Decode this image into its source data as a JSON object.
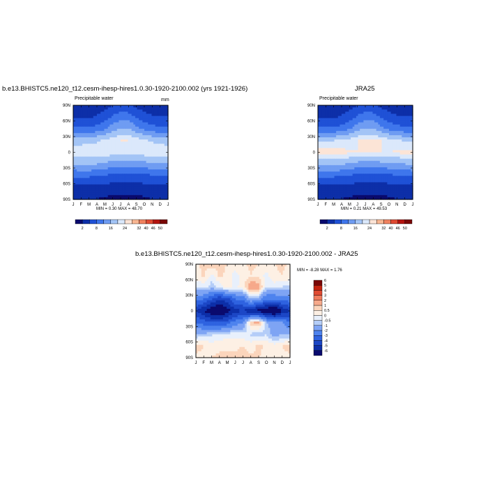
{
  "panels": [
    {
      "title": "b.e13.BHISTC5.ne120_t12.cesm-ihesp-hires1.0.30-1920-2100.002 (yrs 1921-1926)",
      "subtitle_left": "Precipitable water",
      "subtitle_right": "mm",
      "min_label": "MIN =",
      "min_value": "0.30",
      "max_label": "MAX =",
      "max_value": "48.70"
    },
    {
      "title": "JRA25",
      "subtitle_left": "Precipitable water",
      "subtitle_right": "",
      "min_label": "MIN =",
      "min_value": "0.21",
      "max_label": "MAX =",
      "max_value": "49.53"
    },
    {
      "title": "b.e13.BHISTC5.ne120_t12.cesm-ihesp-hires1.0.30-1920-2100.002 - JRA25",
      "subtitle_left": "",
      "subtitle_right": "",
      "min_label": "MIN =",
      "min_value": "-8.28",
      "max_label": "MAX =",
      "max_value": "1.76"
    }
  ],
  "chart_data": [
    {
      "type": "heatmap",
      "title": "b.e13.BHISTC5.ne120_t12.cesm-ihesp-hires1.0.30-1920-2100.002 (yrs 1921-1926)",
      "variable": "Precipitable water",
      "units": "mm",
      "x_ticks": [
        "J",
        "F",
        "M",
        "A",
        "M",
        "J",
        "J",
        "A",
        "S",
        "O",
        "N",
        "D",
        "J"
      ],
      "y_ticks": [
        "90N",
        "60N",
        "30N",
        "0",
        "30S",
        "60S",
        "90S"
      ],
      "colorbar_levels": [
        "2",
        "8",
        "16",
        "24",
        "32",
        "40",
        "46",
        "50"
      ],
      "min": 0.3,
      "max": 48.7,
      "z": [
        [
          3,
          2,
          2,
          3,
          5,
          8,
          10,
          9,
          6,
          4,
          3,
          3,
          3
        ],
        [
          8,
          7,
          7,
          9,
          12,
          17,
          21,
          20,
          15,
          11,
          9,
          8,
          8
        ],
        [
          18,
          17,
          17,
          19,
          23,
          29,
          33,
          32,
          27,
          22,
          19,
          18,
          18
        ],
        [
          36,
          37,
          38,
          39,
          41,
          44,
          46,
          46,
          44,
          41,
          39,
          37,
          36
        ],
        [
          46,
          45,
          45,
          45,
          45,
          44,
          44,
          44,
          44,
          44,
          45,
          46,
          46
        ],
        [
          32,
          33,
          33,
          32,
          30,
          28,
          27,
          27,
          28,
          29,
          30,
          31,
          32
        ],
        [
          17,
          17,
          17,
          16,
          15,
          14,
          13,
          13,
          13,
          14,
          15,
          16,
          17
        ],
        [
          6,
          6,
          6,
          5,
          5,
          4,
          4,
          4,
          4,
          5,
          5,
          6,
          6
        ],
        [
          2,
          2,
          2,
          2,
          1,
          1,
          1,
          1,
          1,
          1,
          2,
          2,
          2
        ]
      ]
    },
    {
      "type": "heatmap",
      "title": "JRA25",
      "variable": "Precipitable water",
      "units": "",
      "x_ticks": [
        "J",
        "F",
        "M",
        "A",
        "M",
        "J",
        "J",
        "A",
        "S",
        "O",
        "N",
        "D",
        "J"
      ],
      "y_ticks": [
        "90N",
        "60N",
        "30N",
        "0",
        "30S",
        "60S",
        "90S"
      ],
      "colorbar_levels": [
        "2",
        "8",
        "16",
        "24",
        "32",
        "40",
        "46",
        "50"
      ],
      "min": 0.21,
      "max": 49.53,
      "z": [
        [
          3,
          2,
          2,
          3,
          5,
          8,
          10,
          9,
          6,
          4,
          3,
          3,
          3
        ],
        [
          8,
          7,
          7,
          9,
          12,
          17,
          21,
          20,
          15,
          11,
          9,
          8,
          8
        ],
        [
          18,
          17,
          17,
          19,
          23,
          29,
          33,
          32,
          27,
          22,
          19,
          18,
          18
        ],
        [
          38,
          39,
          40,
          41,
          43,
          46,
          48,
          48,
          46,
          43,
          41,
          39,
          38
        ],
        [
          49,
          49,
          49,
          48,
          47,
          46,
          46,
          46,
          46,
          46,
          47,
          48,
          49
        ],
        [
          33,
          34,
          34,
          33,
          31,
          29,
          28,
          28,
          29,
          30,
          31,
          32,
          33
        ],
        [
          17,
          17,
          17,
          16,
          15,
          14,
          13,
          13,
          13,
          14,
          15,
          16,
          17
        ],
        [
          6,
          6,
          6,
          5,
          5,
          4,
          4,
          4,
          4,
          5,
          5,
          6,
          6
        ],
        [
          2,
          2,
          2,
          2,
          1,
          1,
          1,
          1,
          1,
          1,
          2,
          2,
          2
        ]
      ]
    },
    {
      "type": "heatmap",
      "title": "b.e13.BHISTC5.ne120_t12.cesm-ihesp-hires1.0.30-1920-2100.002 - JRA25",
      "x_ticks": [
        "J",
        "F",
        "M",
        "A",
        "M",
        "J",
        "J",
        "A",
        "S",
        "O",
        "N",
        "D",
        "J"
      ],
      "y_ticks": [
        "90N",
        "60N",
        "30N",
        "0",
        "30S",
        "60S",
        "90S"
      ],
      "colorbar_levels": [
        "-6",
        "-5",
        "-4",
        "-3",
        "-2",
        "-1",
        "-0.5",
        "0",
        "0.5",
        "1",
        "2",
        "3",
        "4",
        "5",
        "6"
      ],
      "min": -8.28,
      "max": 1.76,
      "z": [
        [
          0.4,
          0.6,
          0.8,
          0.6,
          0.5,
          0.4,
          0.4,
          0.6,
          0.5,
          0.4,
          0.5,
          0.6,
          0.4
        ],
        [
          0.3,
          0.6,
          -0.2,
          0.6,
          0.4,
          -0.3,
          0.2,
          0.5,
          0.3,
          -0.2,
          0.4,
          0.5,
          0.3
        ],
        [
          -0.6,
          -0.3,
          -0.8,
          -0.4,
          0.3,
          -0.2,
          0.3,
          1.6,
          1.4,
          -0.5,
          -0.3,
          -0.6,
          -0.6
        ],
        [
          -2.5,
          -3,
          -4,
          -5,
          -4.5,
          -3,
          -2.8,
          -1,
          -1.5,
          -3,
          -3,
          -2.5,
          -2.5
        ],
        [
          -5,
          -6,
          -7,
          -7.5,
          -6.5,
          -5.5,
          -5,
          -6,
          -6.5,
          -7,
          -8,
          -6,
          -5
        ],
        [
          -3,
          -3.5,
          -4,
          -4,
          -3.5,
          -2.5,
          -2,
          0.8,
          1.2,
          -1,
          -1.5,
          -2,
          -3
        ],
        [
          -1,
          -0.8,
          -0.6,
          -0.4,
          -0.3,
          -0.2,
          -0.3,
          -0.6,
          -0.8,
          -0.5,
          -1.5,
          -1,
          -1
        ],
        [
          0.8,
          0.5,
          0.3,
          0.4,
          0.5,
          0.4,
          0.5,
          0.3,
          0.6,
          0.4,
          0.3,
          0.5,
          0.8
        ],
        [
          0.3,
          0.4,
          0.5,
          0.6,
          0.5,
          0.6,
          0.7,
          0.6,
          0.5,
          0.4,
          0.3,
          0.4,
          0.3
        ]
      ]
    }
  ],
  "colors": {
    "abs_scale": [
      "#0a0a6e",
      "#0d2fa8",
      "#1f51d6",
      "#3f76ec",
      "#6f9cf2",
      "#a3c4f6",
      "#dbe8fb",
      "#fce4d6",
      "#f8b692",
      "#f0825f",
      "#e04a32",
      "#b4140f",
      "#7a0706"
    ],
    "diff_scale": [
      "#0a0a6e",
      "#0d2fa8",
      "#1c47c6",
      "#2f63e0",
      "#4e83ee",
      "#7ea4f4",
      "#b4cdf8",
      "#e8f0fc",
      "#fdf0e4",
      "#fbd5bc",
      "#f6a98b",
      "#ef7c5e",
      "#e04a32",
      "#c42310",
      "#7a0706"
    ]
  }
}
